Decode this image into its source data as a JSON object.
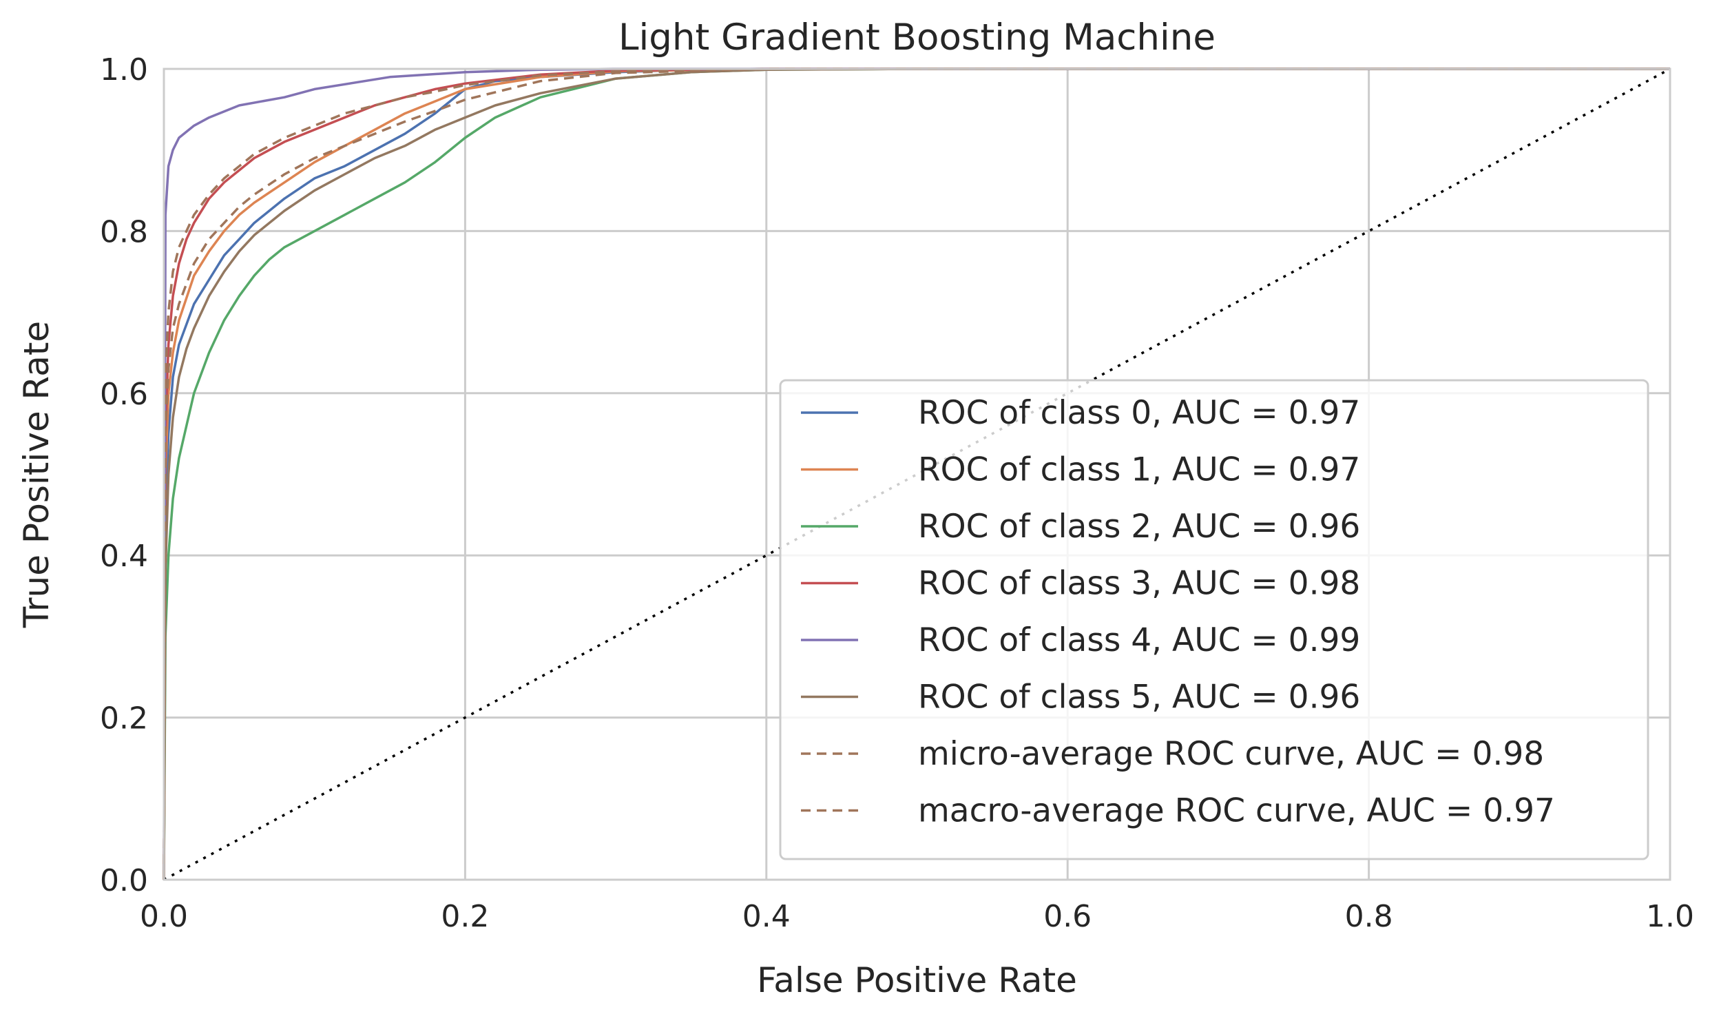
{
  "chart_data": {
    "type": "line",
    "title": "Light Gradient Boosting Machine",
    "xlabel": "False Positive Rate",
    "ylabel": "True Positive Rate",
    "xlim": [
      0.0,
      1.0
    ],
    "ylim": [
      0.0,
      1.0
    ],
    "xticks": [
      "0.0",
      "0.2",
      "0.4",
      "0.6",
      "0.8",
      "1.0"
    ],
    "yticks": [
      "0.0",
      "0.2",
      "0.4",
      "0.6",
      "0.8",
      "1.0"
    ],
    "grid": true,
    "legend_position": "lower-right",
    "series": [
      {
        "name": "ROC of class 0, AUC = 0.97",
        "color": "#4c72b0",
        "style": "solid",
        "x": [
          0,
          0.001,
          0.003,
          0.006,
          0.01,
          0.02,
          0.03,
          0.04,
          0.05,
          0.06,
          0.08,
          0.1,
          0.12,
          0.14,
          0.16,
          0.18,
          0.2,
          0.22,
          0.25,
          0.3,
          0.35,
          0.4,
          0.5,
          1.0
        ],
        "y": [
          0,
          0.45,
          0.55,
          0.62,
          0.66,
          0.71,
          0.74,
          0.77,
          0.79,
          0.81,
          0.84,
          0.865,
          0.88,
          0.9,
          0.92,
          0.945,
          0.975,
          0.985,
          0.99,
          0.996,
          0.999,
          1.0,
          1.0,
          1.0
        ]
      },
      {
        "name": "ROC of class 1, AUC = 0.97",
        "color": "#dd8452",
        "style": "solid",
        "x": [
          0,
          0.001,
          0.003,
          0.006,
          0.01,
          0.02,
          0.03,
          0.04,
          0.05,
          0.06,
          0.08,
          0.1,
          0.12,
          0.14,
          0.16,
          0.18,
          0.2,
          0.25,
          0.3,
          0.4,
          1.0
        ],
        "y": [
          0,
          0.5,
          0.6,
          0.65,
          0.69,
          0.745,
          0.775,
          0.8,
          0.82,
          0.835,
          0.86,
          0.885,
          0.905,
          0.925,
          0.945,
          0.96,
          0.975,
          0.99,
          0.997,
          1.0,
          1.0
        ]
      },
      {
        "name": "ROC of class 2, AUC = 0.96",
        "color": "#55a868",
        "style": "solid",
        "x": [
          0,
          0.001,
          0.003,
          0.006,
          0.01,
          0.015,
          0.02,
          0.03,
          0.04,
          0.05,
          0.06,
          0.07,
          0.08,
          0.1,
          0.12,
          0.14,
          0.16,
          0.18,
          0.2,
          0.22,
          0.25,
          0.3,
          0.35,
          0.4,
          0.5,
          1.0
        ],
        "y": [
          0,
          0.3,
          0.4,
          0.47,
          0.52,
          0.56,
          0.6,
          0.65,
          0.69,
          0.72,
          0.745,
          0.765,
          0.78,
          0.8,
          0.82,
          0.84,
          0.86,
          0.885,
          0.915,
          0.94,
          0.965,
          0.988,
          0.996,
          0.999,
          1.0,
          1.0
        ]
      },
      {
        "name": "ROC of class 3, AUC = 0.98",
        "color": "#c44e52",
        "style": "solid",
        "x": [
          0,
          0.001,
          0.003,
          0.006,
          0.01,
          0.015,
          0.02,
          0.03,
          0.04,
          0.05,
          0.06,
          0.08,
          0.1,
          0.12,
          0.14,
          0.16,
          0.18,
          0.2,
          0.25,
          0.3,
          0.4,
          1.0
        ],
        "y": [
          0,
          0.55,
          0.66,
          0.72,
          0.76,
          0.79,
          0.81,
          0.84,
          0.86,
          0.875,
          0.89,
          0.91,
          0.925,
          0.94,
          0.955,
          0.965,
          0.975,
          0.982,
          0.993,
          0.998,
          1.0,
          1.0
        ]
      },
      {
        "name": "ROC of class 4, AUC = 0.99",
        "color": "#8172b3",
        "style": "solid",
        "x": [
          0,
          0.001,
          0.003,
          0.006,
          0.01,
          0.02,
          0.03,
          0.05,
          0.08,
          0.1,
          0.15,
          0.2,
          0.25,
          0.3,
          0.4,
          1.0
        ],
        "y": [
          0,
          0.82,
          0.88,
          0.9,
          0.915,
          0.93,
          0.94,
          0.955,
          0.965,
          0.975,
          0.99,
          0.996,
          0.999,
          1.0,
          1.0,
          1.0
        ]
      },
      {
        "name": "ROC of class 5, AUC = 0.96",
        "color": "#937860",
        "style": "solid",
        "x": [
          0,
          0.001,
          0.003,
          0.006,
          0.01,
          0.015,
          0.02,
          0.03,
          0.04,
          0.05,
          0.06,
          0.08,
          0.1,
          0.12,
          0.14,
          0.16,
          0.18,
          0.2,
          0.22,
          0.25,
          0.3,
          0.35,
          0.4,
          0.5,
          1.0
        ],
        "y": [
          0,
          0.38,
          0.5,
          0.57,
          0.62,
          0.655,
          0.68,
          0.72,
          0.75,
          0.775,
          0.795,
          0.825,
          0.85,
          0.87,
          0.89,
          0.905,
          0.925,
          0.94,
          0.955,
          0.97,
          0.988,
          0.996,
          0.999,
          1.0,
          1.0
        ]
      },
      {
        "name": "micro-average ROC curve, AUC = 0.98",
        "color": "#a0755a",
        "style": "dashed",
        "x": [
          0,
          0.001,
          0.003,
          0.006,
          0.01,
          0.02,
          0.03,
          0.04,
          0.05,
          0.06,
          0.08,
          0.1,
          0.12,
          0.14,
          0.16,
          0.18,
          0.2,
          0.25,
          0.3,
          0.4,
          1.0
        ],
        "y": [
          0,
          0.62,
          0.7,
          0.75,
          0.78,
          0.82,
          0.845,
          0.865,
          0.88,
          0.895,
          0.915,
          0.93,
          0.945,
          0.955,
          0.965,
          0.972,
          0.98,
          0.992,
          0.997,
          1.0,
          1.0
        ]
      },
      {
        "name": "macro-average ROC curve, AUC = 0.97",
        "color": "#a0755a",
        "style": "dashed",
        "x": [
          0,
          0.001,
          0.003,
          0.006,
          0.01,
          0.02,
          0.03,
          0.04,
          0.05,
          0.06,
          0.08,
          0.1,
          0.12,
          0.14,
          0.16,
          0.18,
          0.2,
          0.25,
          0.3,
          0.4,
          1.0
        ],
        "y": [
          0,
          0.55,
          0.63,
          0.68,
          0.71,
          0.76,
          0.79,
          0.81,
          0.83,
          0.845,
          0.87,
          0.89,
          0.905,
          0.92,
          0.935,
          0.948,
          0.962,
          0.985,
          0.995,
          1.0,
          1.0
        ]
      }
    ],
    "chance_line": {
      "color": "#000000",
      "style": "dotted",
      "x": [
        0,
        1
      ],
      "y": [
        0,
        1
      ]
    }
  }
}
